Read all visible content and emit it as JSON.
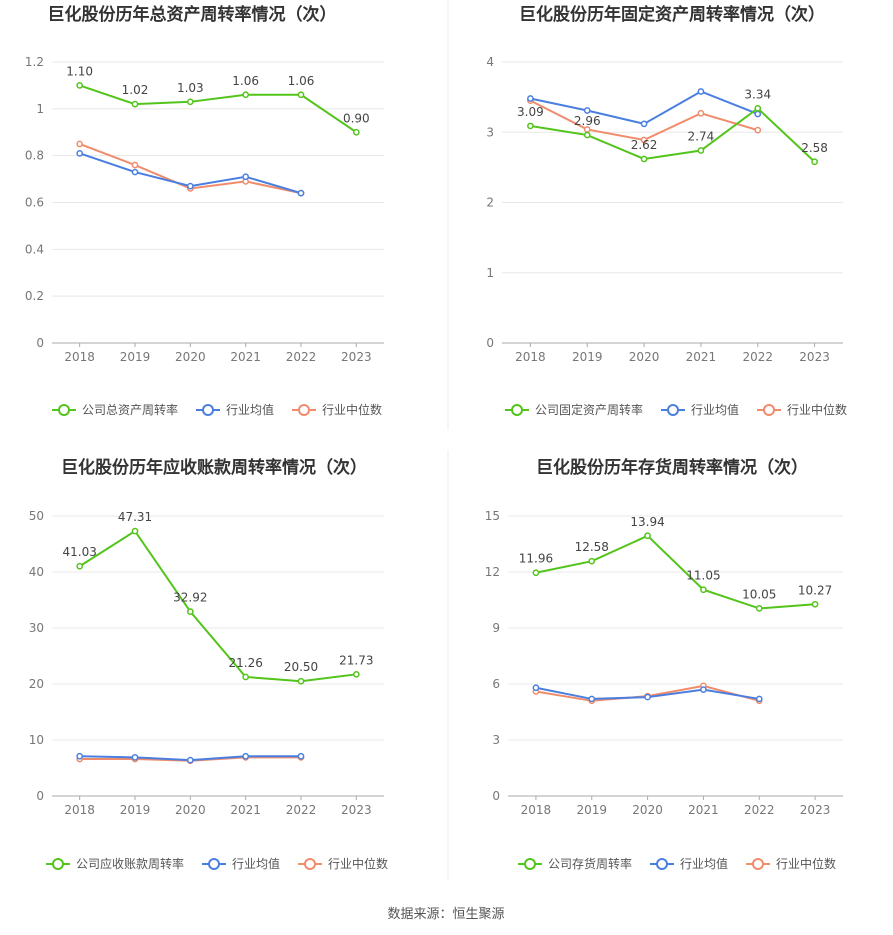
{
  "source_note": "数据来源：恒生聚源",
  "colors": {
    "company": "#52c41a",
    "average": "#4a7fe0",
    "median": "#f08c6c",
    "grid": "#e8e8e8",
    "axis": "#aaaaaa"
  },
  "chart_data": [
    {
      "type": "line",
      "title": "巨化股份历年总资产周转率情况（次）",
      "categories": [
        "2018",
        "2019",
        "2020",
        "2021",
        "2022",
        "2023"
      ],
      "ylim": [
        0,
        1.2
      ],
      "yticks": [
        "0",
        "0.2",
        "0.4",
        "0.6",
        "0.8",
        "1",
        "1.2"
      ],
      "legend_position": "bottom",
      "series": [
        {
          "name": "公司总资产周转率",
          "key": "company",
          "values": [
            1.1,
            1.02,
            1.03,
            1.06,
            1.06,
            0.9
          ],
          "labels": [
            "1.10",
            "1.02",
            "1.03",
            "1.06",
            "1.06",
            "0.90"
          ]
        },
        {
          "name": "行业均值",
          "key": "average",
          "values": [
            0.81,
            0.73,
            0.67,
            0.71,
            0.64,
            null
          ]
        },
        {
          "name": "行业中位数",
          "key": "median",
          "values": [
            0.85,
            0.76,
            0.66,
            0.69,
            0.64,
            null
          ]
        }
      ]
    },
    {
      "type": "line",
      "title": "巨化股份历年固定资产周转率情况（次）",
      "categories": [
        "2018",
        "2019",
        "2020",
        "2021",
        "2022",
        "2023"
      ],
      "ylim": [
        0,
        4
      ],
      "yticks": [
        "0",
        "1",
        "2",
        "3",
        "4"
      ],
      "legend_position": "bottom",
      "series": [
        {
          "name": "公司固定资产周转率",
          "key": "company",
          "values": [
            3.09,
            2.96,
            2.62,
            2.74,
            3.34,
            2.58
          ],
          "labels": [
            "3.09",
            "2.96",
            "2.62",
            "2.74",
            "3.34",
            "2.58"
          ]
        },
        {
          "name": "行业均值",
          "key": "average",
          "values": [
            3.48,
            3.31,
            3.12,
            3.58,
            3.26,
            null
          ]
        },
        {
          "name": "行业中位数",
          "key": "median",
          "values": [
            3.45,
            3.04,
            2.89,
            3.27,
            3.03,
            null
          ]
        }
      ]
    },
    {
      "type": "line",
      "title": "巨化股份历年应收账款周转率情况（次）",
      "categories": [
        "2018",
        "2019",
        "2020",
        "2021",
        "2022",
        "2023"
      ],
      "ylim": [
        0,
        50
      ],
      "yticks": [
        "0",
        "10",
        "20",
        "30",
        "40",
        "50"
      ],
      "legend_position": "bottom",
      "series": [
        {
          "name": "公司应收账款周转率",
          "key": "company",
          "values": [
            41.03,
            47.31,
            32.92,
            21.26,
            20.5,
            21.73
          ],
          "labels": [
            "41.03",
            "47.31",
            "32.92",
            "21.26",
            "20.50",
            "21.73"
          ]
        },
        {
          "name": "行业均值",
          "key": "average",
          "values": [
            7.1,
            6.9,
            6.4,
            7.1,
            7.1,
            null
          ]
        },
        {
          "name": "行业中位数",
          "key": "median",
          "values": [
            6.6,
            6.6,
            6.3,
            6.9,
            6.9,
            null
          ]
        }
      ]
    },
    {
      "type": "line",
      "title": "巨化股份历年存货周转率情况（次）",
      "categories": [
        "2018",
        "2019",
        "2020",
        "2021",
        "2022",
        "2023"
      ],
      "ylim": [
        0,
        15
      ],
      "yticks": [
        "0",
        "3",
        "6",
        "9",
        "12",
        "15"
      ],
      "legend_position": "bottom",
      "series": [
        {
          "name": "公司存货周转率",
          "key": "company",
          "values": [
            11.96,
            12.58,
            13.94,
            11.05,
            10.05,
            10.27
          ],
          "labels": [
            "11.96",
            "12.58",
            "13.94",
            "11.05",
            "10.05",
            "10.27"
          ]
        },
        {
          "name": "行业均值",
          "key": "average",
          "values": [
            5.8,
            5.2,
            5.3,
            5.7,
            5.2,
            null
          ]
        },
        {
          "name": "行业中位数",
          "key": "median",
          "values": [
            5.6,
            5.1,
            5.35,
            5.9,
            5.1,
            null
          ]
        }
      ]
    }
  ]
}
